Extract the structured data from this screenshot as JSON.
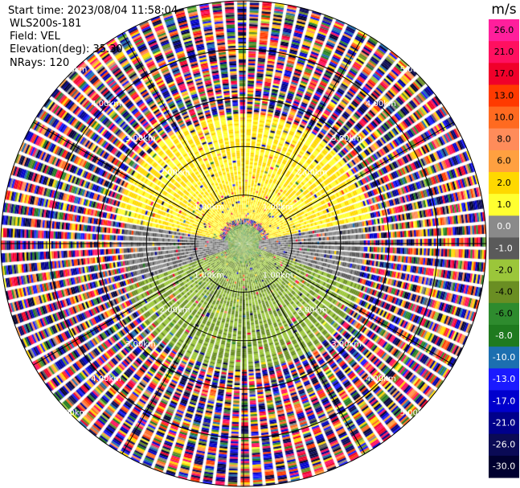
{
  "header": {
    "start_time": "Start time: 2023/08/04 11:58:04",
    "instrument": "WLS200s-181",
    "field": "Field: VEL",
    "elevation": "Elevation(deg): 35.30",
    "nrays": "NRays: 120"
  },
  "colorbar": {
    "unit": "m/s",
    "ticks": [
      "26.0",
      "21.0",
      "17.0",
      "13.0",
      "10.0",
      "8.0",
      "6.0",
      "2.0",
      "1.0",
      "0.0",
      "-1.0",
      "-2.0",
      "-4.0",
      "-6.0",
      "-8.0",
      "-10.0",
      "-13.0",
      "-17.0",
      "-21.0",
      "-26.0",
      "-30.0"
    ],
    "colors": [
      "#ff1f9c",
      "#ff1060",
      "#f0002a",
      "#ff3a00",
      "#ff6a20",
      "#ff8c5a",
      "#ffa040",
      "#ffd800",
      "#ffff30",
      "#8a8a8a",
      "#5a5a5a",
      "#9bc63a",
      "#6a8e23",
      "#2e8b2e",
      "#1f7a1f",
      "#1c6fb0",
      "#1a1aff",
      "#0000cd",
      "#00008b",
      "#0a0a55",
      "#000030"
    ]
  },
  "chart_data": {
    "type": "ppi",
    "field": "VEL",
    "units": "m/s",
    "n_rays": 120,
    "elevation_deg": 35.3,
    "color_scale_min": -30.0,
    "color_scale_max": 26.0,
    "range_ring_labels": [
      "1.00km",
      "2.00km",
      "3.00km",
      "4.00km",
      "5.00km"
    ],
    "range_rings_km": [
      1,
      2,
      3,
      4,
      5
    ],
    "max_range_km": 5.0,
    "velocity_regions": [
      {
        "description": "positive (north)",
        "azimuth_from_deg": 280,
        "azimuth_to_deg": 80,
        "range_km": [
          0.5,
          2.7
        ],
        "value_ms": 2.0
      },
      {
        "description": "negative (south)",
        "azimuth_from_deg": 110,
        "azimuth_to_deg": 250,
        "range_km": [
          0.4,
          2.6
        ],
        "value_ms": -2.0
      },
      {
        "description": "near-zero band",
        "azimuth_from_deg": 80,
        "azimuth_to_deg": 110,
        "range_km": [
          0.3,
          2.5
        ],
        "value_ms": 0.0
      },
      {
        "description": "near-zero band",
        "azimuth_from_deg": 250,
        "azimuth_to_deg": 280,
        "range_km": [
          0.3,
          2.5
        ],
        "value_ms": 0.0
      }
    ]
  }
}
